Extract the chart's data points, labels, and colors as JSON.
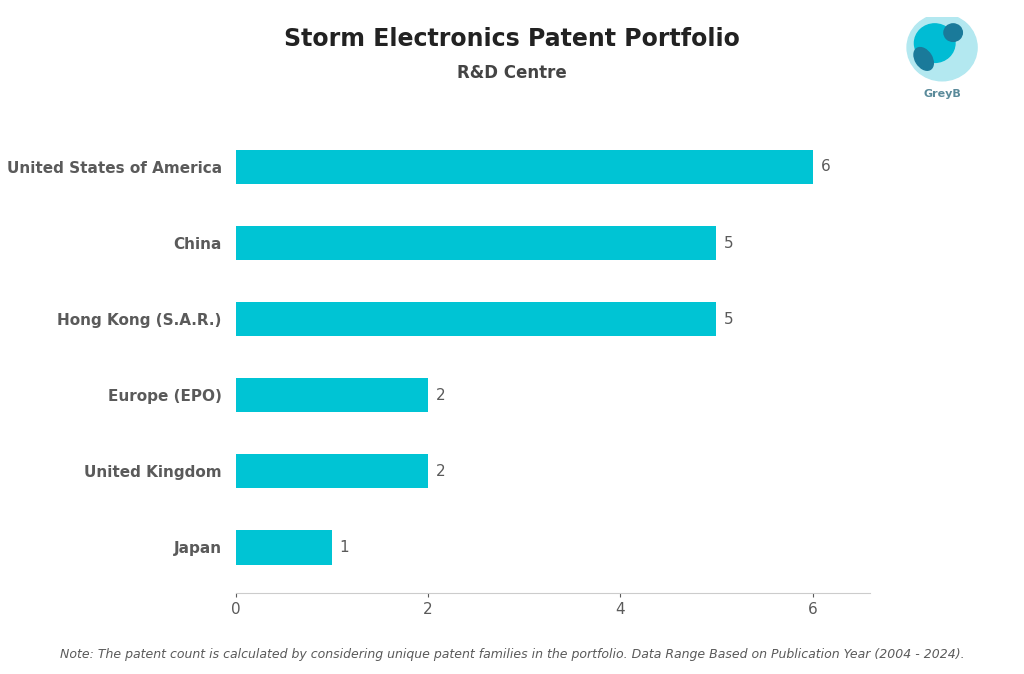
{
  "title": "Storm Electronics Patent Portfolio",
  "subtitle": "R&D Centre",
  "categories": [
    "United States of America",
    "China",
    "Hong Kong (S.A.R.)",
    "Europe (EPO)",
    "United Kingdom",
    "Japan"
  ],
  "values": [
    6,
    5,
    5,
    2,
    2,
    1
  ],
  "bar_color": "#00C4D4",
  "bar_height": 0.45,
  "xlim": [
    0,
    6.6
  ],
  "xticks": [
    0,
    2,
    4,
    6
  ],
  "background_color": "#ffffff",
  "title_fontsize": 17,
  "subtitle_fontsize": 12,
  "label_fontsize": 11,
  "value_fontsize": 11,
  "tick_fontsize": 11,
  "note_text": "Note: The patent count is calculated by considering unique patent families in the portfolio. Data Range Based on Publication Year (2004 - 2024).",
  "note_fontsize": 9,
  "title_fontweight": "bold",
  "subtitle_fontweight": "bold",
  "label_color": "#5a5a5a",
  "value_color": "#5a5a5a",
  "tick_color": "#5a5a5a",
  "note_color": "#5a5a5a"
}
